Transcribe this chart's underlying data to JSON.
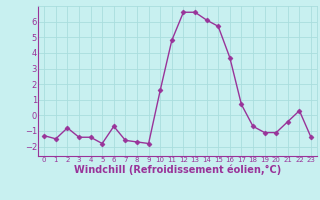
{
  "x": [
    0,
    1,
    2,
    3,
    4,
    5,
    6,
    7,
    8,
    9,
    10,
    11,
    12,
    13,
    14,
    15,
    16,
    17,
    18,
    19,
    20,
    21,
    22,
    23
  ],
  "y": [
    -1.3,
    -1.5,
    -0.8,
    -1.4,
    -1.4,
    -1.8,
    -0.7,
    -1.6,
    -1.7,
    -1.8,
    1.6,
    4.8,
    6.6,
    6.6,
    6.1,
    5.7,
    3.7,
    0.7,
    -0.7,
    -1.1,
    -1.1,
    -0.4,
    0.3,
    -1.4
  ],
  "line_color": "#993399",
  "marker": "D",
  "markersize": 2.5,
  "linewidth": 1.0,
  "bg_color": "#c8f0f0",
  "grid_color": "#aadddd",
  "tick_color": "#993399",
  "label_color": "#993399",
  "xlabel": "Windchill (Refroidissement éolien,°C)",
  "xlabel_fontsize": 7,
  "yticks": [
    -2,
    -1,
    0,
    1,
    2,
    3,
    4,
    5,
    6
  ],
  "xticks": [
    0,
    1,
    2,
    3,
    4,
    5,
    6,
    7,
    8,
    9,
    10,
    11,
    12,
    13,
    14,
    15,
    16,
    17,
    18,
    19,
    20,
    21,
    22,
    23
  ],
  "ylim": [
    -2.6,
    7.0
  ],
  "xlim": [
    -0.5,
    23.5
  ]
}
